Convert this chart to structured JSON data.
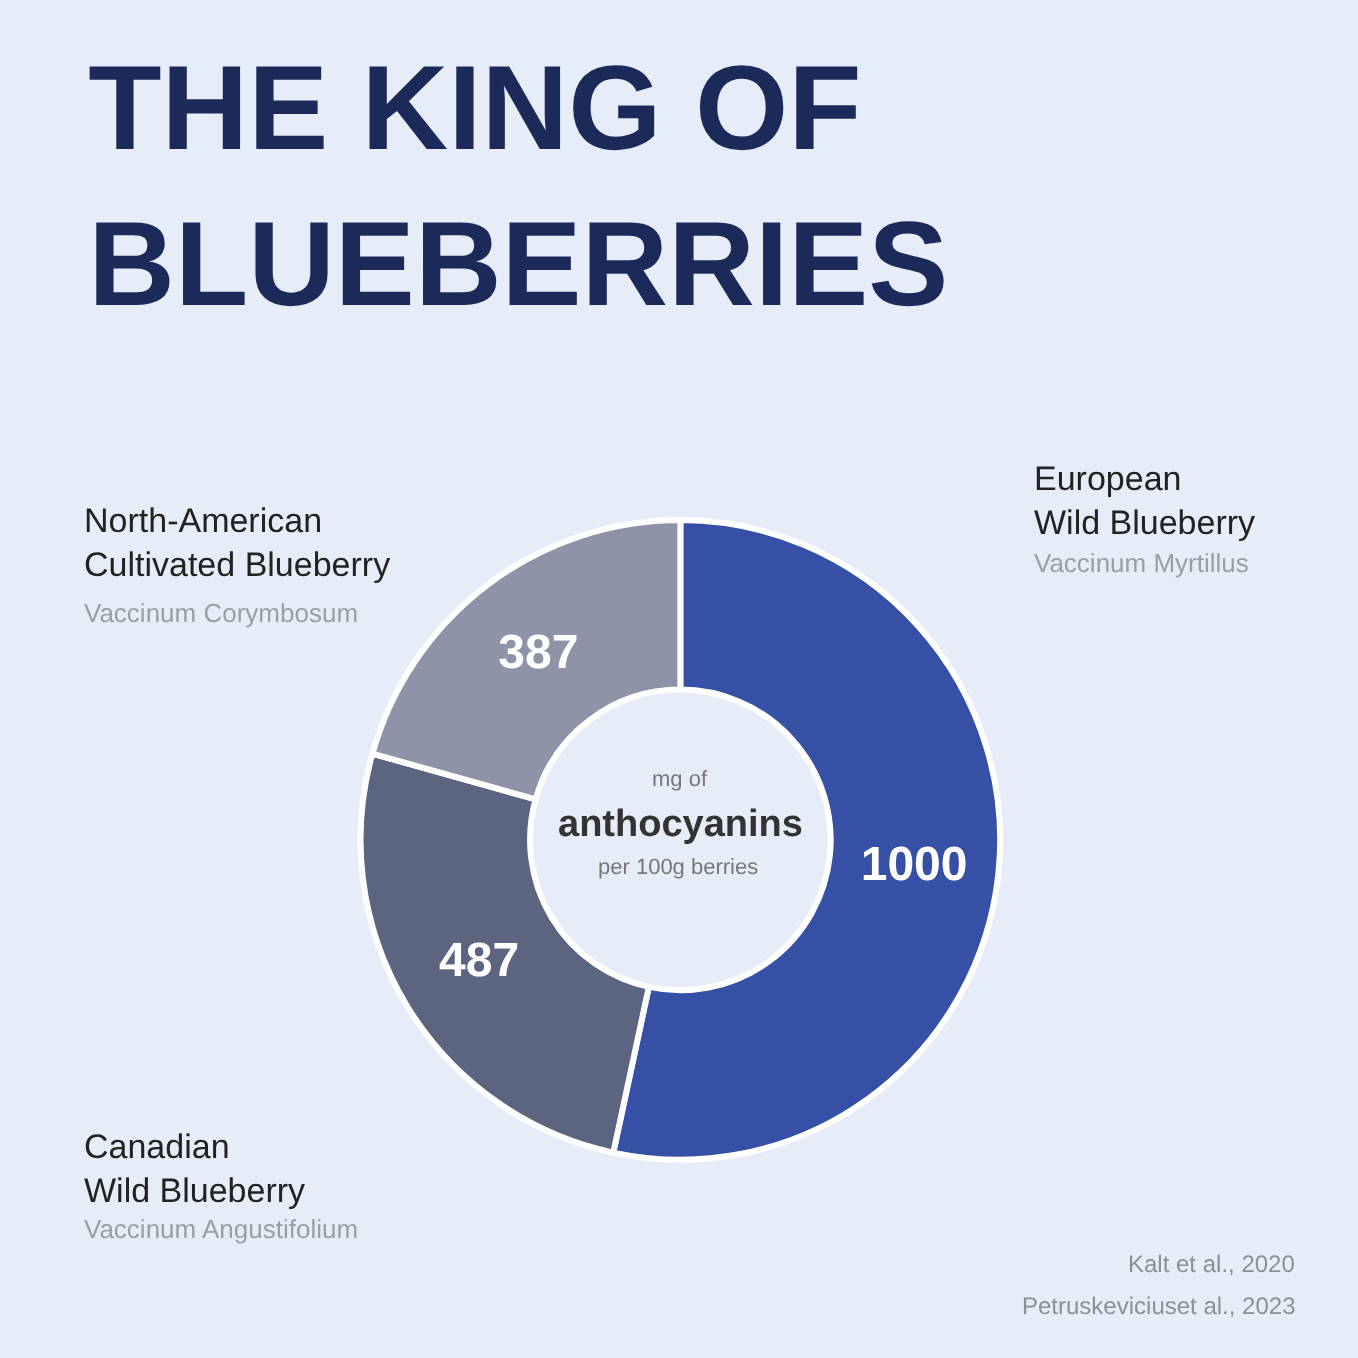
{
  "chart_data": {
    "type": "donut",
    "title": "THE KING OF BLUEBERRIES",
    "categories": [
      "European Wild Blueberry",
      "Canadian Wild Blueberry",
      "North-American Cultivated Blueberry"
    ],
    "values": [
      1000,
      487,
      387
    ],
    "colors": [
      "#3550a5",
      "#5b6580",
      "#8e93a8"
    ],
    "data_labels": true,
    "legend": false,
    "annotations": [
      "Vaccinum Myrtillus",
      "Vaccinum Angustifolium",
      "Vaccinum Corymbosum",
      "mg of",
      "anthocyanins",
      "per 100g berries",
      "Kalt et al., 2020",
      "Petruskeviciuset al., 2023"
    ]
  }
}
